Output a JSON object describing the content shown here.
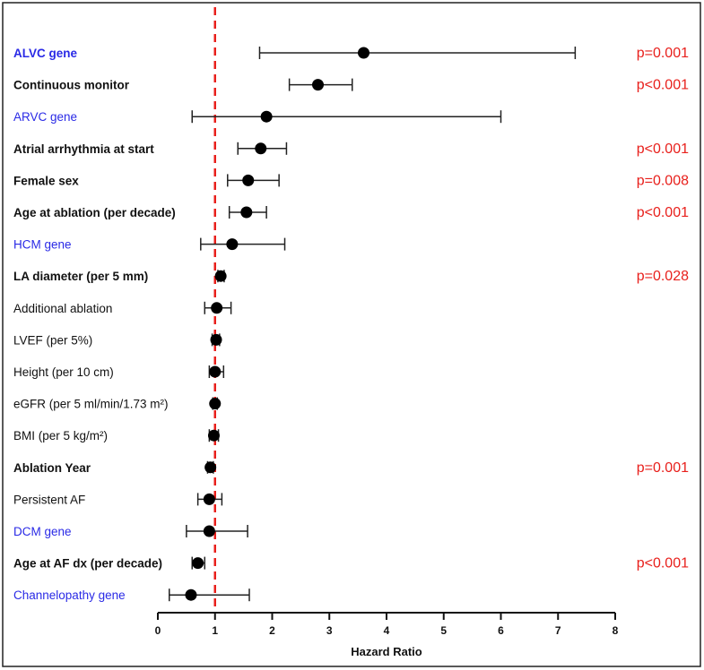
{
  "chart_data": {
    "type": "forest",
    "xlabel": "Hazard Ratio",
    "xlim": [
      0,
      8
    ],
    "xticks": [
      "0",
      "1",
      "2",
      "3",
      "4",
      "5",
      "6",
      "7",
      "8"
    ],
    "reference_line": 1,
    "colors": {
      "black_label": "#111111",
      "gene_label": "#2a2ae6",
      "pvalue": "#e8201c",
      "reference_line": "#e8201c",
      "marker": "#000000"
    },
    "rows": [
      {
        "label": "ALVC gene",
        "hr": 3.6,
        "lo": 1.78,
        "hi": 7.3,
        "bold": true,
        "color": "gene",
        "p": "p=0.001"
      },
      {
        "label": "Continuous monitor",
        "hr": 2.8,
        "lo": 2.3,
        "hi": 3.4,
        "bold": true,
        "color": "black",
        "p": "p<0.001"
      },
      {
        "label": "ARVC gene",
        "hr": 1.9,
        "lo": 0.6,
        "hi": 6.0,
        "bold": false,
        "color": "gene",
        "p": ""
      },
      {
        "label": "Atrial arrhythmia at start",
        "hr": 1.8,
        "lo": 1.4,
        "hi": 2.25,
        "bold": true,
        "color": "black",
        "p": "p<0.001"
      },
      {
        "label": "Female sex",
        "hr": 1.58,
        "lo": 1.22,
        "hi": 2.12,
        "bold": true,
        "color": "black",
        "p": "p=0.008"
      },
      {
        "label": "Age at ablation (per decade)",
        "hr": 1.55,
        "lo": 1.25,
        "hi": 1.9,
        "bold": true,
        "color": "black",
        "p": "p<0.001"
      },
      {
        "label": "HCM gene",
        "hr": 1.3,
        "lo": 0.75,
        "hi": 2.22,
        "bold": false,
        "color": "gene",
        "p": ""
      },
      {
        "label": "LA diameter (per 5 mm)",
        "hr": 1.1,
        "lo": 1.05,
        "hi": 1.16,
        "bold": true,
        "color": "black",
        "p": "p=0.028"
      },
      {
        "label": "Additional ablation",
        "hr": 1.03,
        "lo": 0.82,
        "hi": 1.28,
        "bold": false,
        "color": "black",
        "p": ""
      },
      {
        "label": "LVEF (per 5%)",
        "hr": 1.02,
        "lo": 0.95,
        "hi": 1.08,
        "bold": false,
        "color": "black",
        "p": ""
      },
      {
        "label": "Height (per 10 cm)",
        "hr": 1.0,
        "lo": 0.9,
        "hi": 1.15,
        "bold": false,
        "color": "black",
        "p": ""
      },
      {
        "label": "eGFR (per 5 ml/min/1.73 m²)",
        "hr": 1.0,
        "lo": 0.96,
        "hi": 1.04,
        "bold": false,
        "color": "black",
        "p": ""
      },
      {
        "label": "BMI (per 5 kg/m²)",
        "hr": 0.98,
        "lo": 0.9,
        "hi": 1.06,
        "bold": false,
        "color": "black",
        "p": ""
      },
      {
        "label": "Ablation Year",
        "hr": 0.92,
        "lo": 0.87,
        "hi": 0.97,
        "bold": true,
        "color": "black",
        "p": "p=0.001"
      },
      {
        "label": "Persistent AF",
        "hr": 0.9,
        "lo": 0.7,
        "hi": 1.12,
        "bold": false,
        "color": "black",
        "p": ""
      },
      {
        "label": "DCM gene",
        "hr": 0.9,
        "lo": 0.5,
        "hi": 1.57,
        "bold": false,
        "color": "gene",
        "p": ""
      },
      {
        "label": "Age at AF dx (per decade)",
        "hr": 0.7,
        "lo": 0.6,
        "hi": 0.82,
        "bold": true,
        "color": "black",
        "p": "p<0.001"
      },
      {
        "label": "Channelopathy gene",
        "hr": 0.58,
        "lo": 0.2,
        "hi": 1.6,
        "bold": false,
        "color": "gene",
        "p": ""
      }
    ]
  }
}
